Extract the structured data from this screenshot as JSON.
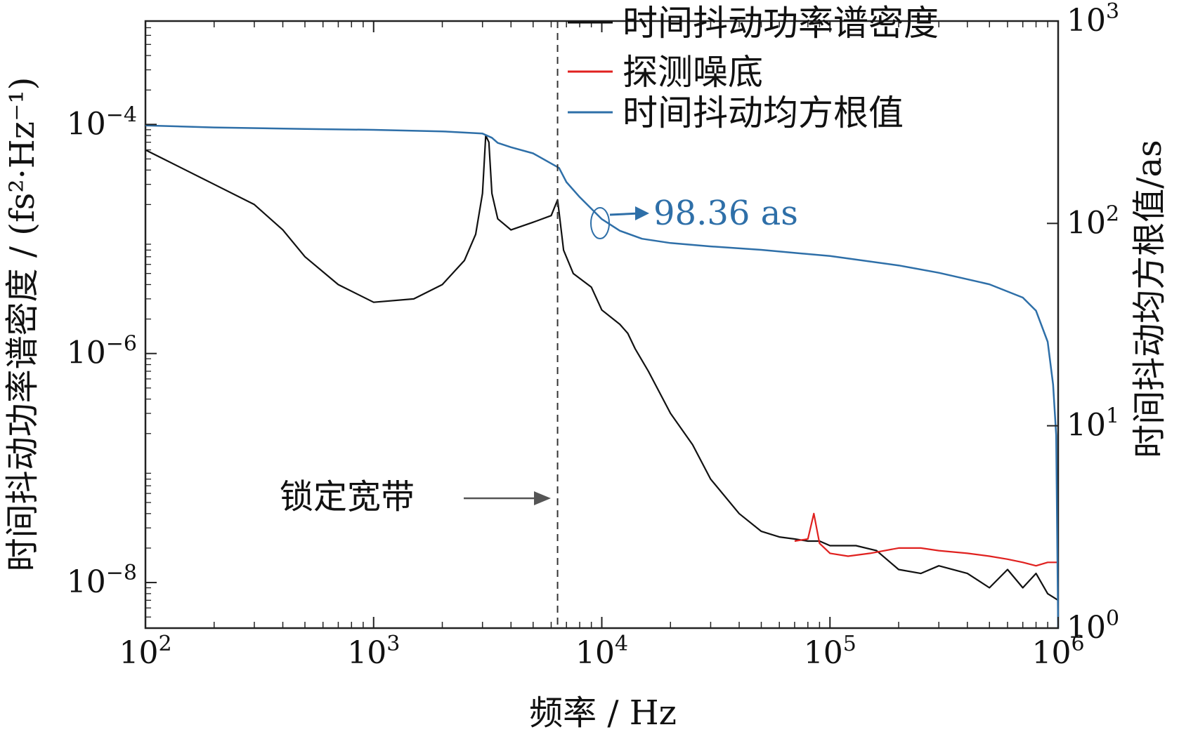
{
  "chart_data": {
    "type": "line",
    "xlabel": "频率 / Hz",
    "ylabel_left": "时间抖动功率谱密度 / (fs²·Hz⁻¹)",
    "ylabel_right": "时间抖动均方根值/as",
    "x_scale": "log",
    "y_left_scale": "log",
    "y_right_scale": "log",
    "xlim": [
      100,
      1000000
    ],
    "ylim_left": [
      4e-09,
      0.0008
    ],
    "ylim_right": [
      1,
      1000
    ],
    "x_ticks": [
      {
        "value": 100,
        "base": "10",
        "exp": "2"
      },
      {
        "value": 1000,
        "base": "10",
        "exp": "3"
      },
      {
        "value": 10000,
        "base": "10",
        "exp": "4"
      },
      {
        "value": 100000,
        "base": "10",
        "exp": "5"
      },
      {
        "value": 1000000,
        "base": "10",
        "exp": "6"
      }
    ],
    "y_left_ticks": [
      {
        "value": 0.0001,
        "base": "10",
        "exp": "−4"
      },
      {
        "value": 1e-06,
        "base": "10",
        "exp": "−6"
      },
      {
        "value": 1e-08,
        "base": "10",
        "exp": "−8"
      }
    ],
    "y_right_ticks": [
      {
        "value": 1000,
        "base": "10",
        "exp": "3"
      },
      {
        "value": 100,
        "base": "10",
        "exp": "2"
      },
      {
        "value": 10,
        "base": "10",
        "exp": "1"
      },
      {
        "value": 1,
        "base": "10",
        "exp": "0"
      }
    ],
    "legend_position": "top-right",
    "series": [
      {
        "name": "时间抖动功率谱密度",
        "axis": "left",
        "color": "#111111",
        "x": [
          100,
          120,
          150,
          200,
          300,
          400,
          500,
          700,
          1000,
          1500,
          2000,
          2500,
          2800,
          3000,
          3100,
          3200,
          3300,
          3500,
          4000,
          5000,
          6000,
          6400,
          6800,
          7500,
          9000,
          10000,
          12000,
          13000,
          14000,
          16000,
          20000,
          25000,
          30000,
          40000,
          50000,
          60000,
          70000,
          80000,
          90000,
          100000,
          130000,
          160000,
          200000,
          250000,
          300000,
          400000,
          500000,
          600000,
          700000,
          800000,
          900000,
          1000000
        ],
        "y": [
          6e-05,
          5e-05,
          4e-05,
          3e-05,
          2e-05,
          1.2e-05,
          7e-06,
          4e-06,
          2.8e-06,
          3e-06,
          4e-06,
          6.5e-06,
          1.1e-05,
          2.5e-05,
          8e-05,
          7e-05,
          2.5e-05,
          1.5e-05,
          1.2e-05,
          1.4e-05,
          1.6e-05,
          2.2e-05,
          8e-06,
          5e-06,
          3.8e-06,
          2.4e-06,
          1.8e-06,
          1.5e-06,
          1.1e-06,
          7e-07,
          3e-07,
          1.6e-07,
          8e-08,
          4e-08,
          2.8e-08,
          2.5e-08,
          2.4e-08,
          2.3e-08,
          2.3e-08,
          2.1e-08,
          2.1e-08,
          1.9e-08,
          1.3e-08,
          1.2e-08,
          1.4e-08,
          1.2e-08,
          9e-09,
          1.3e-08,
          9e-09,
          1.2e-08,
          8e-09,
          7e-09
        ]
      },
      {
        "name": "探测噪底",
        "axis": "left",
        "color": "#e0211f",
        "x": [
          70000,
          80000,
          85000,
          90000,
          100000,
          120000,
          150000,
          200000,
          250000,
          300000,
          400000,
          500000,
          600000,
          700000,
          800000,
          900000,
          1000000
        ],
        "y": [
          2.3e-08,
          2.4e-08,
          4e-08,
          2.2e-08,
          1.8e-08,
          1.7e-08,
          1.8e-08,
          2e-08,
          2e-08,
          1.9e-08,
          1.8e-08,
          1.7e-08,
          1.6e-08,
          1.5e-08,
          1.4e-08,
          1.5e-08,
          1.5e-08
        ]
      },
      {
        "name": "时间抖动均方根值",
        "axis": "right",
        "color": "#2e6fa8",
        "x": [
          100,
          200,
          500,
          1000,
          2000,
          3000,
          3300,
          3500,
          4000,
          5000,
          6500,
          7000,
          8000,
          10000,
          12000,
          15000,
          20000,
          30000,
          50000,
          100000,
          200000,
          300000,
          500000,
          700000,
          800000,
          900000,
          950000,
          980000,
          1000000
        ],
        "y": [
          305,
          298,
          293,
          290,
          285,
          278,
          265,
          250,
          238,
          222,
          188,
          160,
          135,
          105,
          92,
          84,
          80,
          77,
          74,
          69,
          62,
          57,
          50,
          43,
          37,
          26,
          16,
          9,
          1
        ]
      }
    ],
    "annotations": [
      {
        "text": "98.36 as",
        "color": "#2e6fa8",
        "x": 10000,
        "y_right": 100,
        "target": "时间抖动均方根值"
      },
      {
        "text": "锁定宽带",
        "x": 6400,
        "y_left": 2.5e-08
      }
    ],
    "vline": {
      "x": 6400,
      "style": "dashed"
    }
  }
}
